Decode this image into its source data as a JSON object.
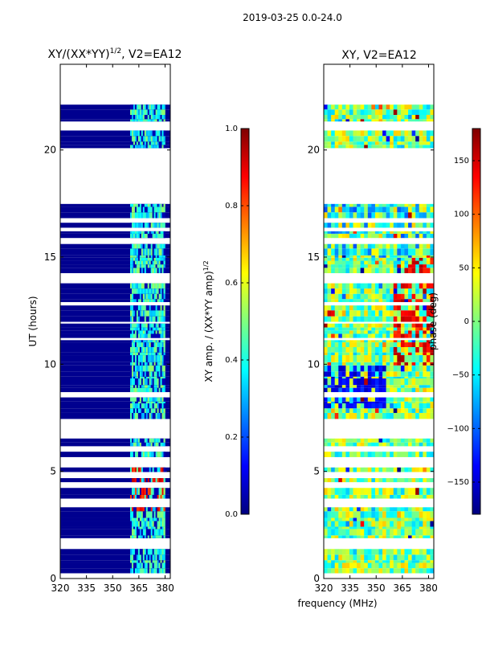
{
  "suptitle": "2019-03-25 0.0-24.0",
  "xlabel_shared": "frequency (MHz)",
  "colors": {
    "bg": "#ffffff",
    "data_blue": "#00008f",
    "jet_stops": [
      "#00007f",
      "#0000ff",
      "#007fff",
      "#00ffff",
      "#7fff7f",
      "#ffff00",
      "#ff7f00",
      "#ff0000",
      "#7f0000"
    ]
  },
  "chart_data": [
    {
      "type": "heatmap",
      "title_main": "XY/(XX*YY)",
      "title_sup": "1/2",
      "title_tail": ", V2=EA12",
      "xlabel": "",
      "ylabel": "UT (hours)",
      "xlim": [
        320,
        383
      ],
      "ylim": [
        0,
        24
      ],
      "xticks": [
        320,
        335,
        350,
        365,
        380
      ],
      "yticks": [
        0,
        5,
        10,
        15,
        20
      ],
      "colorbar": {
        "label": "XY amp. / (XX*YY amp)",
        "label_sup": "1/2",
        "range": [
          0.0,
          1.0
        ],
        "ticks": [
          "0.0",
          "0.2",
          "0.4",
          "0.6",
          "0.8",
          "1.0"
        ],
        "tick_values": [
          0.0,
          0.2,
          0.4,
          0.6,
          0.8,
          1.0
        ]
      },
      "data_gaps_hours": [
        [
          17.5,
          20.1
        ],
        [
          22.2,
          23.2
        ],
        [
          23.3,
          24.0
        ]
      ],
      "dominant_value": 0.0,
      "bright_band_mhz": [
        360,
        380
      ]
    },
    {
      "type": "heatmap",
      "title_main": "XY, V2=EA12",
      "xlabel": "",
      "ylabel": "",
      "xlim": [
        320,
        383
      ],
      "ylim": [
        0,
        24
      ],
      "xticks": [
        320,
        335,
        350,
        365,
        380
      ],
      "yticks": [
        0,
        5,
        10,
        15,
        20
      ],
      "colorbar": {
        "label": "phase (deg)",
        "range": [
          -180,
          180
        ],
        "ticks": [
          "150",
          "100",
          "50",
          "0",
          "−50",
          "−100",
          "−150"
        ],
        "tick_values": [
          150,
          100,
          50,
          0,
          -50,
          -100,
          -150
        ]
      },
      "data_gaps_hours": [
        [
          17.5,
          20.1
        ],
        [
          22.2,
          23.2
        ],
        [
          23.3,
          24.0
        ]
      ]
    }
  ]
}
